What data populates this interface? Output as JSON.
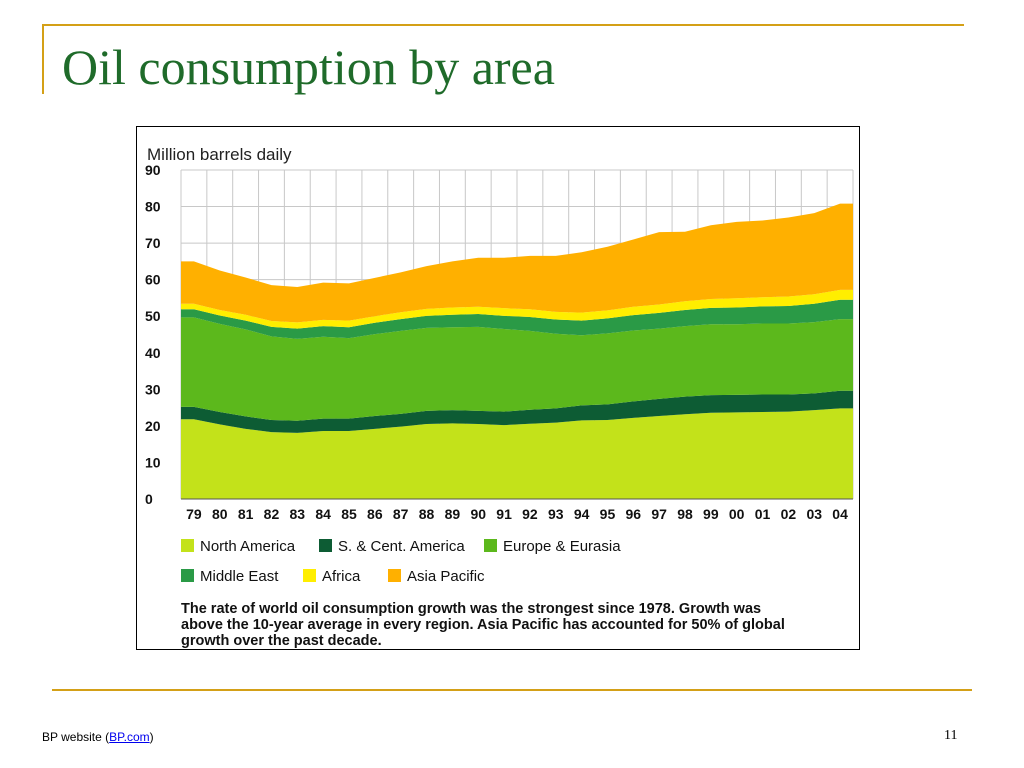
{
  "slide": {
    "title": "Oil consumption by area",
    "footer_prefix": "BP website (",
    "footer_link": "BP.com",
    "footer_suffix": ")",
    "page_number": "11"
  },
  "colors": {
    "frame": "#d4a017",
    "title": "#1f6b2a"
  },
  "chart_data": {
    "type": "area",
    "stacked": true,
    "ylabel": "Million barrels daily",
    "ylim": [
      0,
      90
    ],
    "yticks": [
      "0",
      "10",
      "20",
      "30",
      "40",
      "50",
      "60",
      "70",
      "80",
      "90"
    ],
    "grid": true,
    "legend_position": "bottom",
    "categories": [
      "79",
      "80",
      "81",
      "82",
      "83",
      "84",
      "85",
      "86",
      "87",
      "88",
      "89",
      "90",
      "91",
      "92",
      "93",
      "94",
      "95",
      "96",
      "97",
      "98",
      "99",
      "00",
      "01",
      "02",
      "03",
      "04"
    ],
    "series": [
      {
        "name": "North America",
        "color": "#c3e21a",
        "values": [
          21.8,
          20.4,
          19.2,
          18.3,
          18.1,
          18.6,
          18.6,
          19.2,
          19.8,
          20.5,
          20.7,
          20.5,
          20.2,
          20.6,
          20.9,
          21.5,
          21.6,
          22.2,
          22.7,
          23.2,
          23.6,
          23.7,
          23.8,
          23.9,
          24.3,
          24.8
        ]
      },
      {
        "name": "S. & Cent. America",
        "color": "#0d5c34",
        "values": [
          3.4,
          3.4,
          3.4,
          3.3,
          3.3,
          3.4,
          3.4,
          3.5,
          3.5,
          3.6,
          3.6,
          3.6,
          3.7,
          3.8,
          3.9,
          4.1,
          4.3,
          4.5,
          4.7,
          4.8,
          4.8,
          4.8,
          4.8,
          4.7,
          4.6,
          4.8
        ]
      },
      {
        "name": "Europe & Eurasia",
        "color": "#5cb81c",
        "values": [
          24.5,
          24.1,
          23.8,
          22.9,
          22.4,
          22.4,
          22.0,
          22.4,
          22.7,
          22.7,
          22.7,
          23.0,
          22.6,
          21.6,
          20.4,
          19.2,
          19.4,
          19.4,
          19.2,
          19.3,
          19.4,
          19.3,
          19.4,
          19.4,
          19.5,
          19.6
        ]
      },
      {
        "name": "Middle East",
        "color": "#2a9a46",
        "values": [
          2.2,
          2.3,
          2.4,
          2.6,
          2.8,
          2.9,
          3.0,
          3.1,
          3.2,
          3.3,
          3.4,
          3.5,
          3.6,
          3.8,
          3.9,
          4.0,
          4.1,
          4.2,
          4.3,
          4.4,
          4.5,
          4.6,
          4.7,
          4.8,
          5.0,
          5.3
        ]
      },
      {
        "name": "Africa",
        "color": "#ffee00",
        "values": [
          1.5,
          1.5,
          1.6,
          1.6,
          1.7,
          1.7,
          1.8,
          1.8,
          1.9,
          1.9,
          2.0,
          2.0,
          2.1,
          2.1,
          2.1,
          2.2,
          2.2,
          2.3,
          2.3,
          2.4,
          2.4,
          2.5,
          2.5,
          2.6,
          2.6,
          2.7
        ]
      },
      {
        "name": "Asia Pacific",
        "color": "#ffb000",
        "values": [
          11.6,
          10.8,
          10.2,
          9.8,
          9.7,
          10.2,
          10.2,
          10.5,
          10.9,
          11.7,
          12.6,
          13.4,
          13.8,
          14.6,
          15.3,
          16.5,
          17.4,
          18.4,
          19.8,
          19.0,
          20.2,
          20.9,
          21.0,
          21.6,
          22.2,
          23.6
        ]
      }
    ],
    "caption_lines": [
      "The rate of world oil consumption growth was the strongest since 1978. Growth was",
      "above the 10-year average in every region. Asia Pacific has accounted for 50% of global",
      "growth over the past decade."
    ]
  }
}
